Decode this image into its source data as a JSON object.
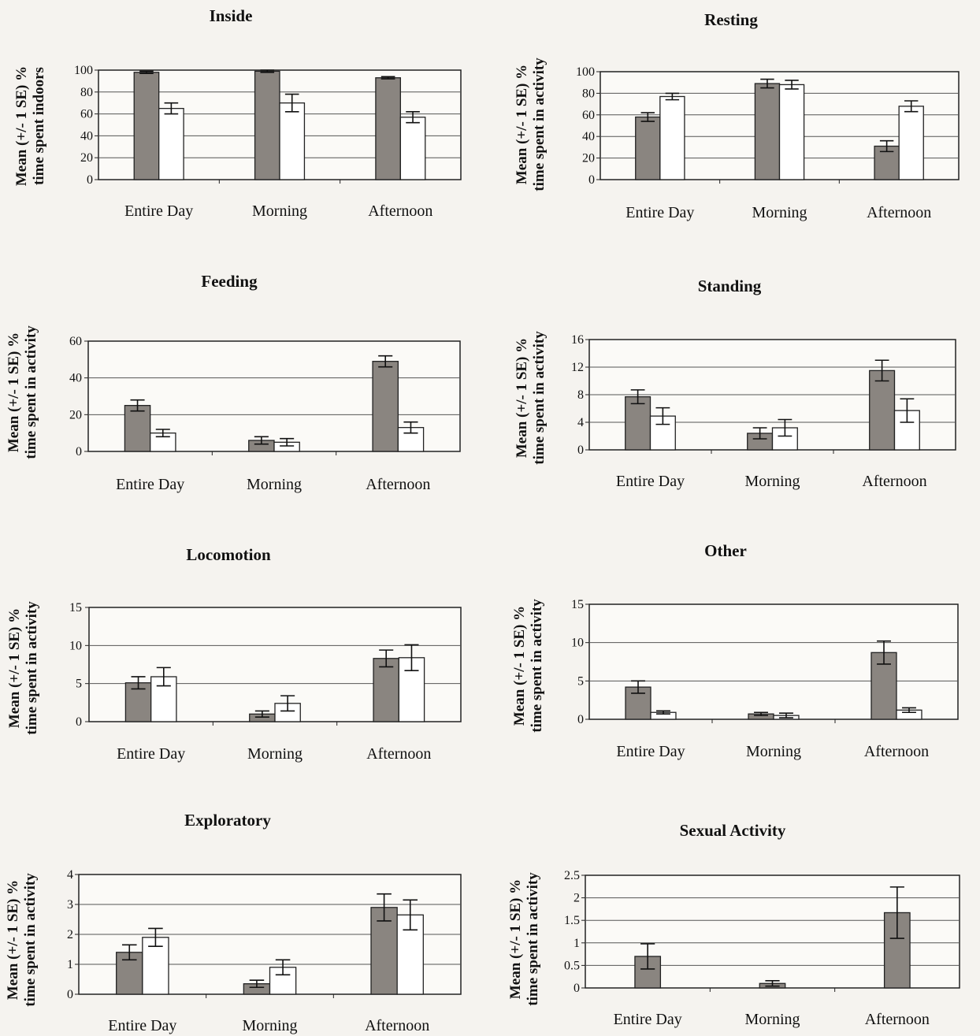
{
  "page": {
    "background": "#f5f3ef"
  },
  "colors": {
    "series_a": "#8a8580",
    "series_b": "#ffffff",
    "axis": "#222222",
    "grid": "#555555"
  },
  "chart_data": [
    {
      "type": "bar",
      "title": "Inside",
      "ylabel_line1": "Mean (+/- 1 SE) %",
      "ylabel_line2": "time spent indoors",
      "categories": [
        "Entire Day",
        "Morning",
        "Afternoon"
      ],
      "yticks": [
        "0",
        "20",
        "40",
        "60",
        "80",
        "100"
      ],
      "ylim": [
        0,
        100
      ],
      "series": [
        {
          "values": [
            98,
            99,
            93
          ],
          "errors": [
            1,
            1,
            1
          ]
        },
        {
          "values": [
            65,
            70,
            57
          ],
          "errors": [
            5,
            8,
            5
          ]
        }
      ],
      "grid": true
    },
    {
      "type": "bar",
      "title": "Resting",
      "ylabel_line1": "Mean (+/- 1 SE) %",
      "ylabel_line2": "time spent in activity",
      "categories": [
        "Entire Day",
        "Morning",
        "Afternoon"
      ],
      "yticks": [
        "0",
        "20",
        "40",
        "60",
        "80",
        "100"
      ],
      "ylim": [
        0,
        100
      ],
      "series": [
        {
          "values": [
            58,
            89,
            31
          ],
          "errors": [
            4,
            4,
            5
          ]
        },
        {
          "values": [
            77,
            88,
            68
          ],
          "errors": [
            3,
            4,
            5
          ]
        }
      ],
      "grid": true
    },
    {
      "type": "bar",
      "title": "Feeding",
      "ylabel_line1": "Mean (+/- 1 SE) %",
      "ylabel_line2": "time spent in activity",
      "categories": [
        "Entire Day",
        "Morning",
        "Afternoon"
      ],
      "yticks": [
        "0",
        "20",
        "40",
        "60"
      ],
      "ylim": [
        0,
        60
      ],
      "series": [
        {
          "values": [
            25,
            6,
            49
          ],
          "errors": [
            3,
            2,
            3
          ]
        },
        {
          "values": [
            10,
            5,
            13
          ],
          "errors": [
            2,
            2,
            3
          ]
        }
      ],
      "grid": true
    },
    {
      "type": "bar",
      "title": "Standing",
      "ylabel_line1": "Mean (+/- 1 SE) %",
      "ylabel_line2": "time spent in activity",
      "categories": [
        "Entire Day",
        "Morning",
        "Afternoon"
      ],
      "yticks": [
        "0",
        "4",
        "8",
        "12",
        "16"
      ],
      "ylim": [
        0,
        16
      ],
      "series": [
        {
          "values": [
            7.7,
            2.4,
            11.5
          ],
          "errors": [
            1,
            0.8,
            1.5
          ]
        },
        {
          "values": [
            4.9,
            3.2,
            5.7
          ],
          "errors": [
            1.2,
            1.2,
            1.7
          ]
        }
      ],
      "grid": true
    },
    {
      "type": "bar",
      "title": "Locomotion",
      "ylabel_line1": "Mean (+/- 1 SE) %",
      "ylabel_line2": "time spent in activity",
      "categories": [
        "Entire Day",
        "Morning",
        "Afternoon"
      ],
      "yticks": [
        "0",
        "5",
        "10",
        "15"
      ],
      "ylim": [
        0,
        15
      ],
      "series": [
        {
          "values": [
            5.1,
            1.0,
            8.3
          ],
          "errors": [
            0.8,
            0.4,
            1.1
          ]
        },
        {
          "values": [
            5.9,
            2.4,
            8.4
          ],
          "errors": [
            1.2,
            1.0,
            1.7
          ]
        }
      ],
      "grid": true
    },
    {
      "type": "bar",
      "title": "Other",
      "ylabel_line1": "Mean (+/- 1 SE) %",
      "ylabel_line2": "time spent in activity",
      "categories": [
        "Entire Day",
        "Morning",
        "Afternoon"
      ],
      "yticks": [
        "0",
        "5",
        "10",
        "15"
      ],
      "ylim": [
        0,
        15
      ],
      "series": [
        {
          "values": [
            4.2,
            0.7,
            8.7
          ],
          "errors": [
            0.8,
            0.2,
            1.5
          ]
        },
        {
          "values": [
            0.9,
            0.5,
            1.2
          ],
          "errors": [
            0.2,
            0.3,
            0.3
          ]
        }
      ],
      "grid": true
    },
    {
      "type": "bar",
      "title": "Exploratory",
      "ylabel_line1": "Mean (+/- 1 SE) %",
      "ylabel_line2": "time spent in activity",
      "categories": [
        "Entire Day",
        "Morning",
        "Afternoon"
      ],
      "yticks": [
        "0",
        "1",
        "2",
        "3",
        "4"
      ],
      "ylim": [
        0,
        4
      ],
      "series": [
        {
          "values": [
            1.4,
            0.35,
            2.9
          ],
          "errors": [
            0.25,
            0.12,
            0.45
          ]
        },
        {
          "values": [
            1.9,
            0.9,
            2.65
          ],
          "errors": [
            0.3,
            0.25,
            0.5
          ]
        }
      ],
      "grid": true
    },
    {
      "type": "bar",
      "title": "Sexual Activity",
      "ylabel_line1": "Mean (+/- 1 SE) %",
      "ylabel_line2": "time spent in activity",
      "categories": [
        "Entire Day",
        "Morning",
        "Afternoon"
      ],
      "yticks": [
        "0",
        "0.5",
        "1",
        "1.5",
        "2",
        "2.5"
      ],
      "ylim": [
        0,
        2.5
      ],
      "series": [
        {
          "values": [
            0.7,
            0.1,
            1.67
          ],
          "errors": [
            0.28,
            0.06,
            0.57
          ]
        }
      ],
      "grid": true
    }
  ]
}
